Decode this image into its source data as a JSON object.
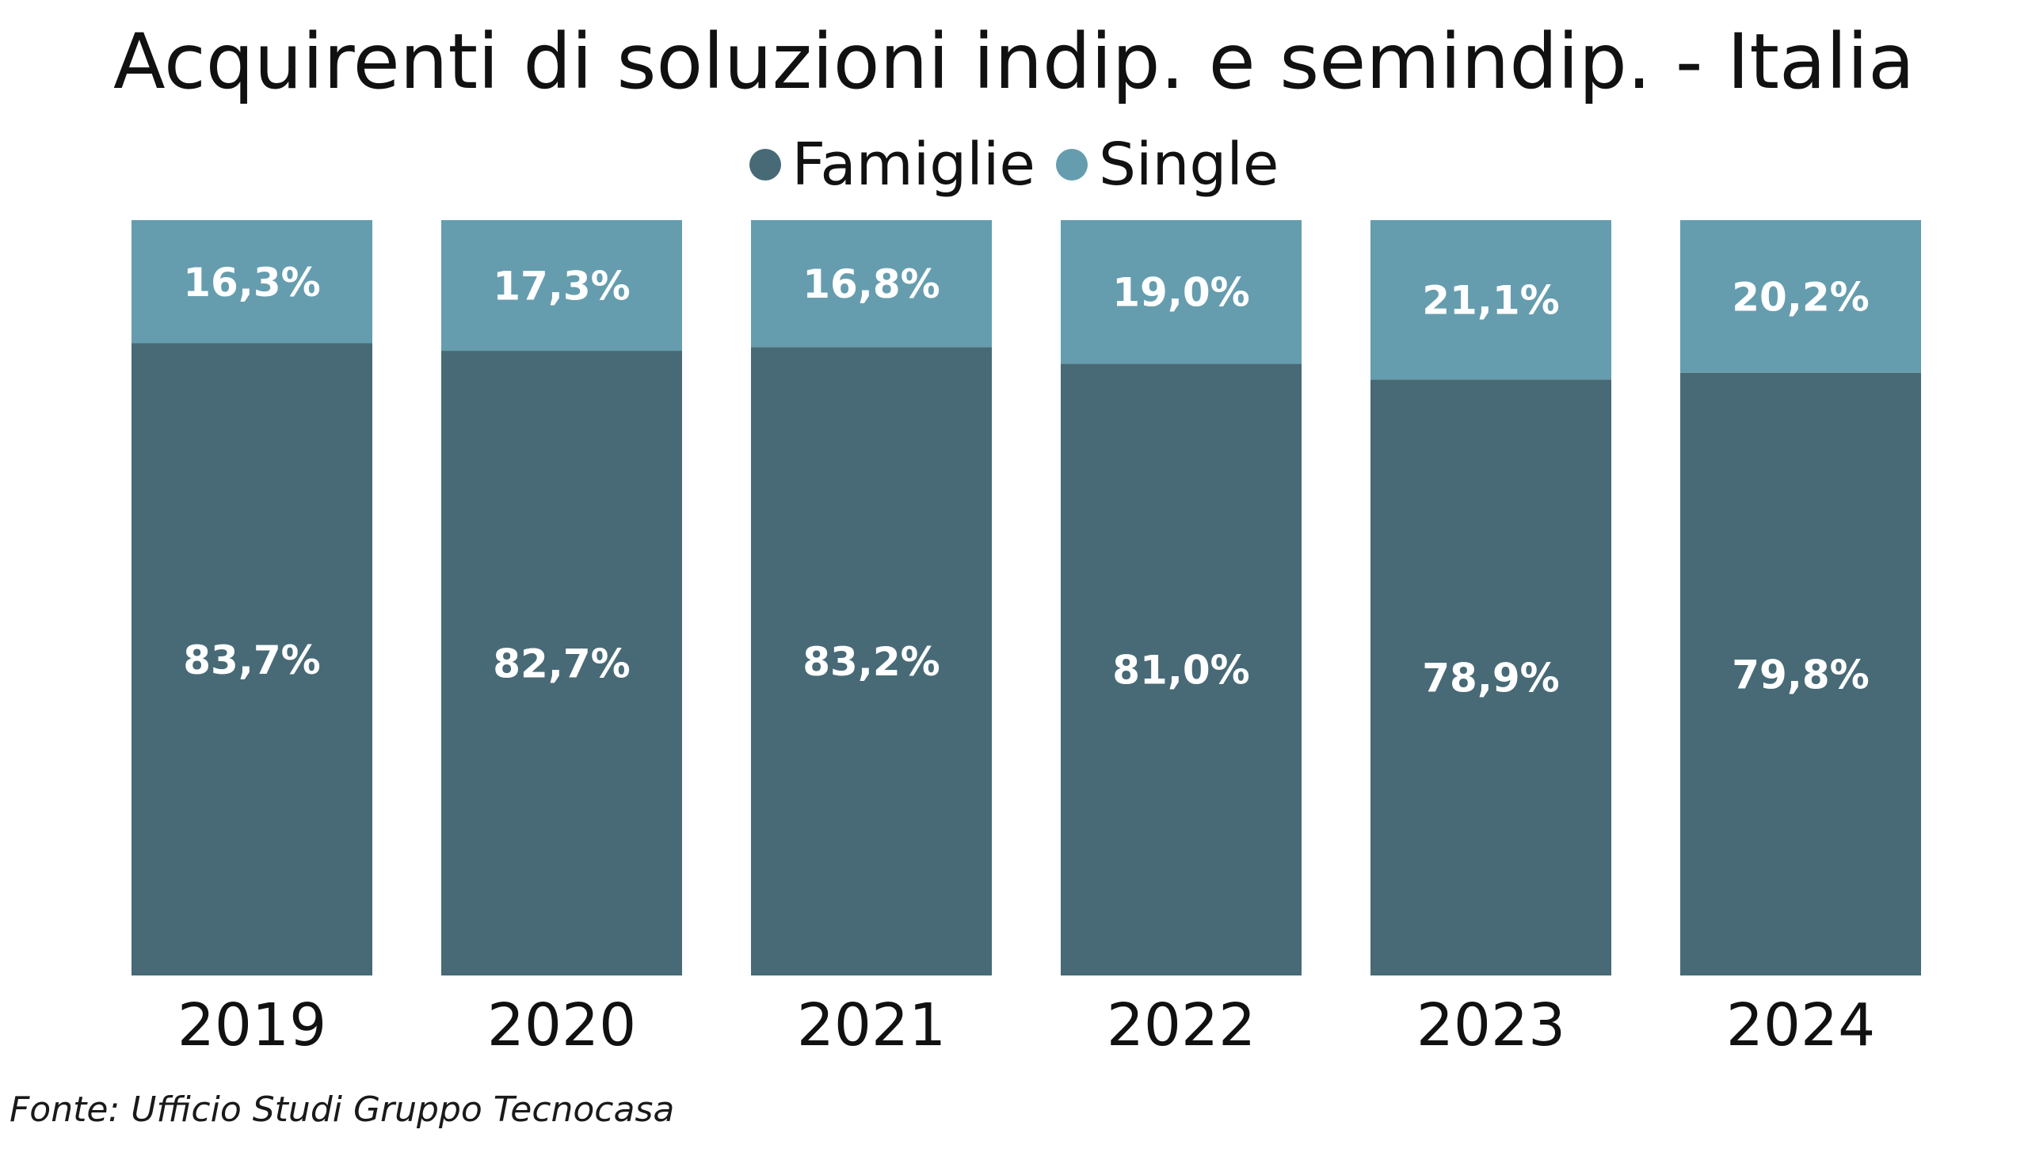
{
  "chart_data": {
    "type": "bar",
    "stacked": true,
    "title": "Acquirenti di soluzioni indip. e semindip. - Italia",
    "categories": [
      "2019",
      "2020",
      "2021",
      "2022",
      "2023",
      "2024"
    ],
    "series": [
      {
        "name": "Famiglie",
        "color": "#476a76",
        "values": [
          83.7,
          82.7,
          83.2,
          81.0,
          78.9,
          79.8
        ],
        "labels": [
          "83,7%",
          "82,7%",
          "83,2%",
          "81,0%",
          "78,9%",
          "79,8%"
        ]
      },
      {
        "name": "Single",
        "color": "#659dae",
        "values": [
          16.3,
          17.3,
          16.8,
          19.0,
          21.1,
          20.2
        ],
        "labels": [
          "16,3%",
          "17,3%",
          "16,8%",
          "19,0%",
          "21,1%",
          "20,2%"
        ]
      }
    ],
    "ylim": [
      0,
      100
    ],
    "legend_position": "top-center",
    "grid": false
  },
  "source_note": "Fonte: Ufficio Studi Gruppo Tecnocasa"
}
